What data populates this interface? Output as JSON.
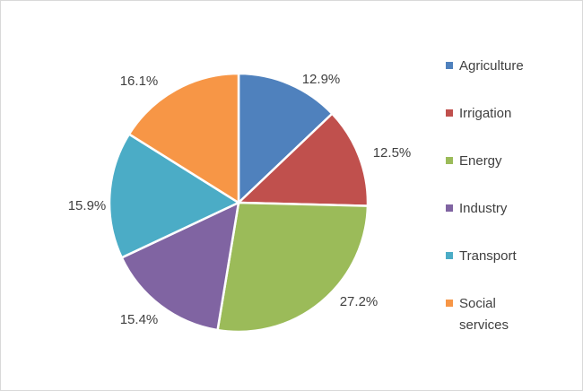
{
  "chart_data": {
    "type": "pie",
    "title": "",
    "categories": [
      "Agriculture",
      "Irrigation",
      "Energy",
      "Industry",
      "Transport",
      "Social services"
    ],
    "values": [
      12.9,
      12.5,
      27.2,
      15.4,
      15.9,
      16.1
    ],
    "labels": [
      "12.9%",
      "12.5%",
      "27.2%",
      "15.4%",
      "15.9%",
      "16.1%"
    ],
    "colors": [
      "#4F81BD",
      "#C0504D",
      "#9BBB59",
      "#8064A2",
      "#4BACC6",
      "#F79646"
    ],
    "start_angle": "12 o'clock",
    "direction": "clockwise",
    "legend_position": "right"
  }
}
